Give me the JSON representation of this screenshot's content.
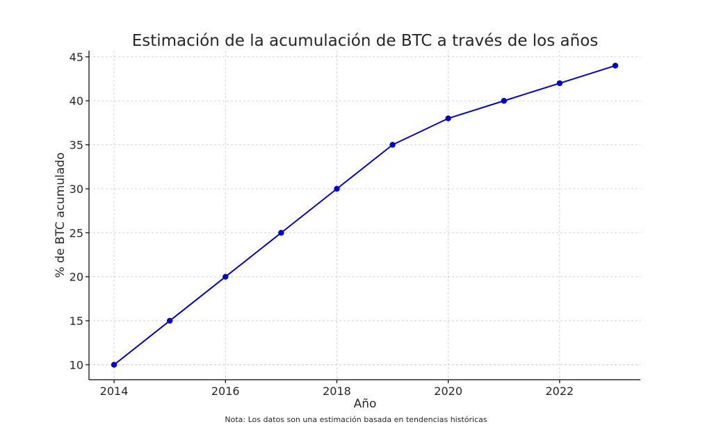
{
  "chart_data": {
    "type": "line",
    "title": "Estimación de la acumulación de BTC a través de los años",
    "xlabel": "Año",
    "ylabel": "% de BTC acumulado",
    "x": [
      2014,
      2015,
      2016,
      2017,
      2018,
      2019,
      2020,
      2021,
      2022,
      2023
    ],
    "series": [
      {
        "values": [
          10,
          15,
          20,
          25,
          30,
          35,
          38,
          40,
          42,
          44
        ],
        "color": "#0000cc",
        "marker": "circle"
      }
    ],
    "xticks": [
      "2014",
      "2016",
      "2018",
      "2020",
      "2022"
    ],
    "yticks": [
      "10",
      "15",
      "20",
      "25",
      "30",
      "35",
      "40",
      "45"
    ],
    "xlim": [
      2013.55,
      2023.45
    ],
    "ylim": [
      8.3,
      45.7
    ],
    "grid": true
  },
  "footnote": "Nota: Los datos son una estimación basada en tendencias históricas"
}
